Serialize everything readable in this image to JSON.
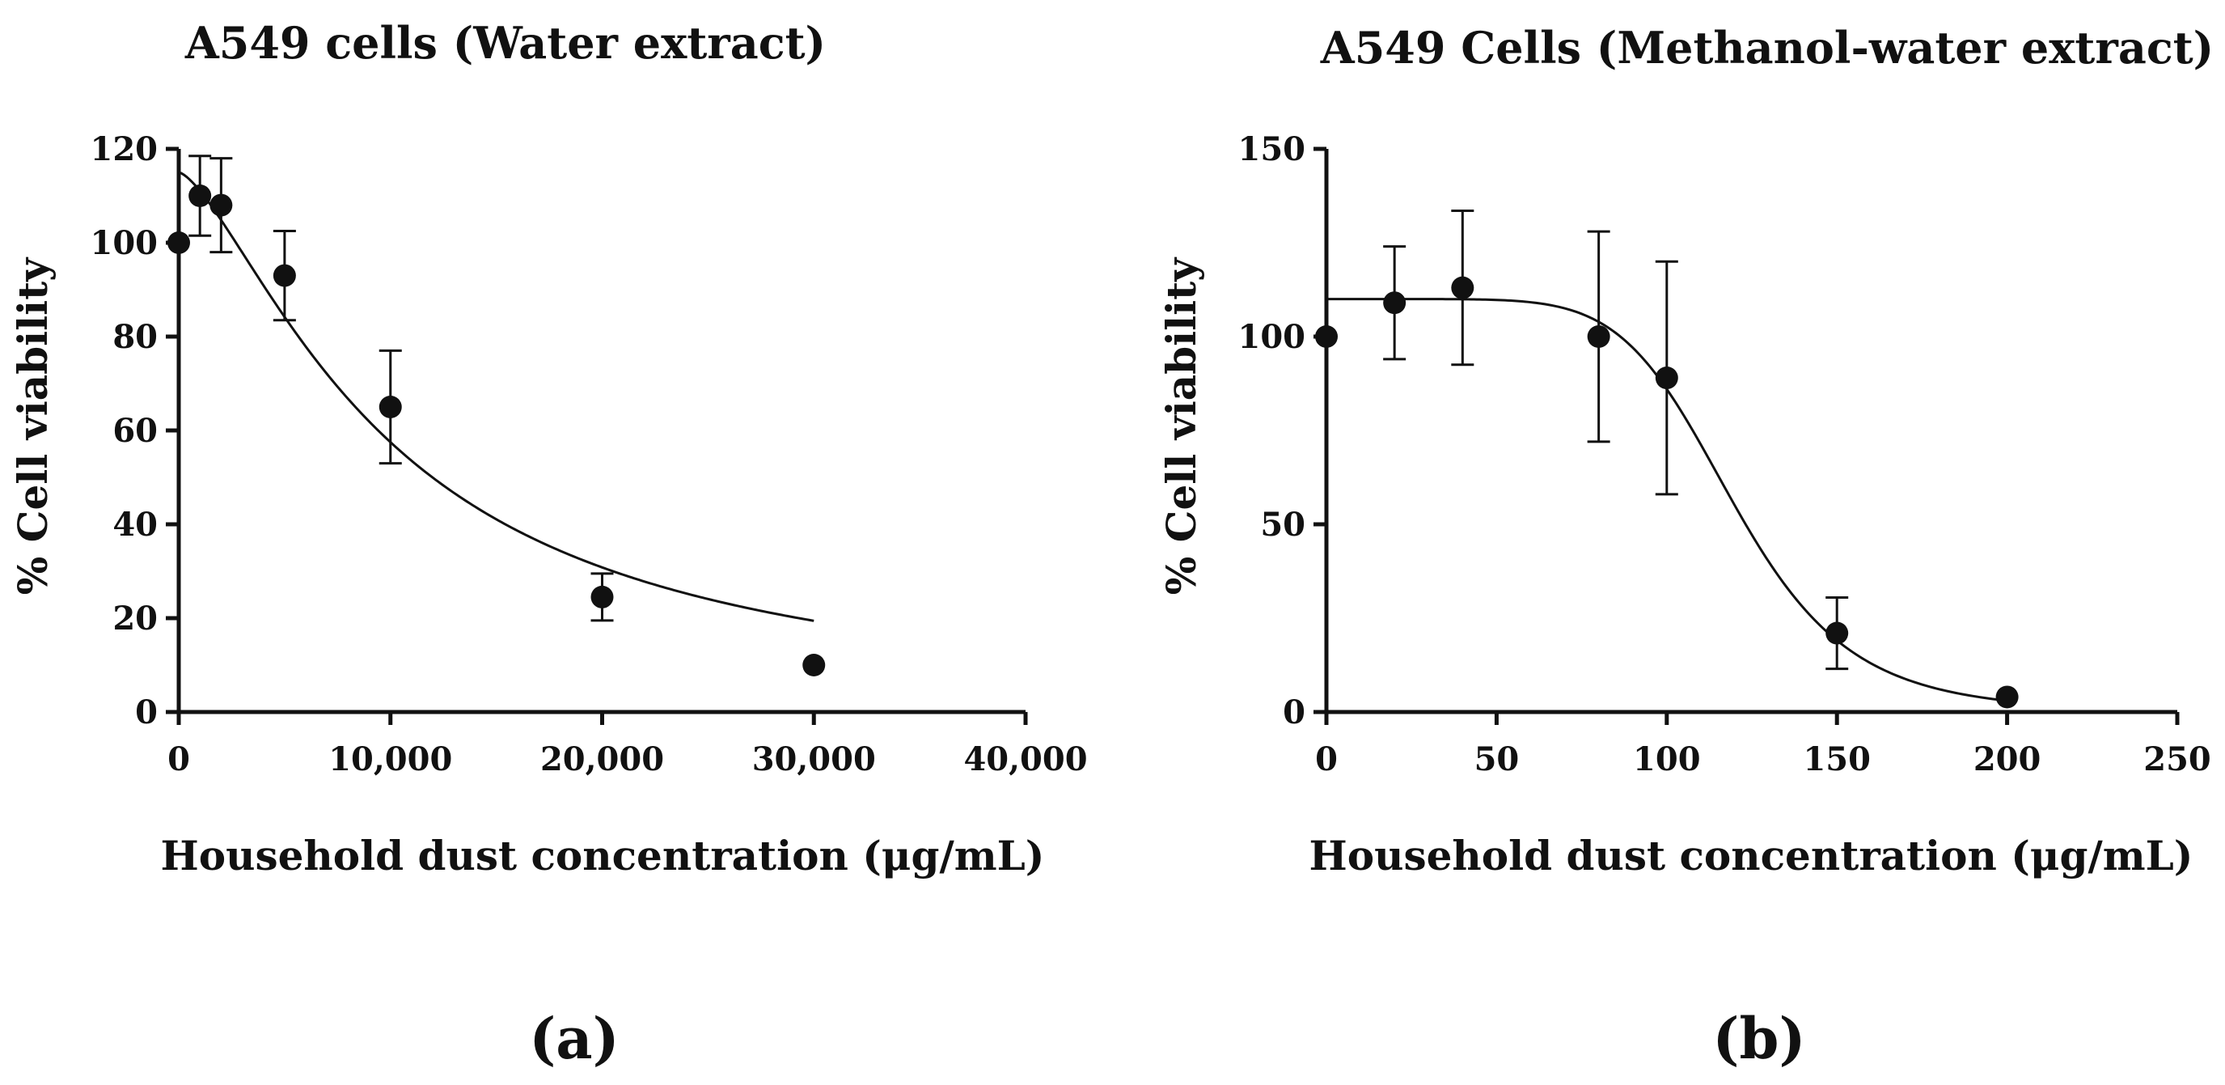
{
  "chart_data": [
    {
      "type": "scatter",
      "panel_label": "(a)",
      "title": "A549 cells (Water extract)",
      "xlabel": "Household dust concentration (μg/mL)",
      "ylabel": "% Cell viability",
      "xlim": [
        0,
        40000
      ],
      "ylim": [
        0,
        120
      ],
      "xticks": [
        0,
        10000,
        20000,
        30000,
        40000
      ],
      "xtick_labels": [
        "0",
        "10,000",
        "20,000",
        "30,000",
        "40,000"
      ],
      "yticks": [
        0,
        20,
        40,
        60,
        80,
        100,
        120
      ],
      "ytick_labels": [
        "0",
        "20",
        "40",
        "60",
        "80",
        "100",
        "120"
      ],
      "x": [
        0,
        1000,
        2000,
        5000,
        10000,
        20000,
        30000
      ],
      "y": [
        100,
        110,
        108,
        93,
        65,
        24.5,
        10
      ],
      "err": [
        0,
        8.5,
        10,
        9.5,
        12,
        5,
        0
      ],
      "fit": {
        "model": "four-parameter logistic",
        "top": 115,
        "bottom": 0,
        "ec50": 10000,
        "hill": 1.45
      }
    },
    {
      "type": "scatter",
      "panel_label": "(b)",
      "title": "A549 Cells (Methanol-water extract)",
      "xlabel": "Household dust concentration (μg/mL)",
      "ylabel": "% Cell viability",
      "xlim": [
        0,
        250
      ],
      "ylim": [
        0,
        150
      ],
      "xticks": [
        0,
        50,
        100,
        150,
        200,
        250
      ],
      "xtick_labels": [
        "0",
        "50",
        "100",
        "150",
        "200",
        "250"
      ],
      "yticks": [
        0,
        50,
        100,
        150
      ],
      "ytick_labels": [
        "0",
        "50",
        "100",
        "150"
      ],
      "x": [
        0,
        20,
        40,
        80,
        100,
        150,
        200
      ],
      "y": [
        100,
        109,
        113,
        100,
        89,
        21,
        4
      ],
      "err": [
        0,
        15,
        20.5,
        28,
        31,
        9.5,
        0
      ],
      "fit": {
        "model": "four-parameter logistic",
        "top": 110,
        "bottom": 0,
        "ec50": 120,
        "hill": 7
      }
    }
  ]
}
